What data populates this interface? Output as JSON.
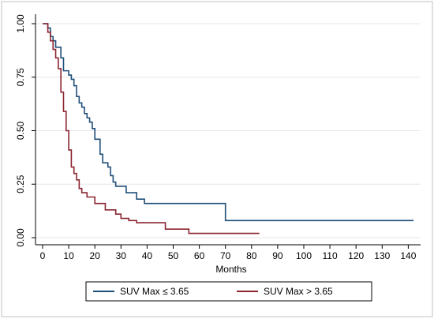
{
  "chart_data": {
    "type": "line",
    "step": true,
    "title": "",
    "xlabel": "Months",
    "ylabel": "",
    "xlim": [
      0,
      142
    ],
    "ylim": [
      0,
      1
    ],
    "x_ticks": [
      0,
      10,
      20,
      30,
      40,
      50,
      60,
      70,
      80,
      90,
      100,
      110,
      120,
      130,
      140
    ],
    "y_ticks": [
      "0.00",
      "0.25",
      "0.50",
      "0.75",
      "1.00"
    ],
    "grid": "horizontal",
    "legend_position": "bottom",
    "series": [
      {
        "name": "SUV Max ≤ 3.65",
        "color": "#1f4e79",
        "points": [
          [
            0,
            1.0
          ],
          [
            2,
            0.98
          ],
          [
            3,
            0.94
          ],
          [
            4,
            0.92
          ],
          [
            5,
            0.89
          ],
          [
            7,
            0.84
          ],
          [
            8,
            0.78
          ],
          [
            10,
            0.76
          ],
          [
            11,
            0.74
          ],
          [
            12,
            0.71
          ],
          [
            13,
            0.66
          ],
          [
            14,
            0.63
          ],
          [
            15,
            0.61
          ],
          [
            16,
            0.58
          ],
          [
            17,
            0.56
          ],
          [
            18,
            0.54
          ],
          [
            19,
            0.51
          ],
          [
            20,
            0.46
          ],
          [
            22,
            0.39
          ],
          [
            23,
            0.35
          ],
          [
            25,
            0.33
          ],
          [
            26,
            0.29
          ],
          [
            27,
            0.26
          ],
          [
            28,
            0.24
          ],
          [
            32,
            0.21
          ],
          [
            36,
            0.18
          ],
          [
            39,
            0.16
          ],
          [
            70,
            0.08
          ],
          [
            142,
            0.08
          ]
        ]
      },
      {
        "name": "SUV Max > 3.65",
        "color": "#8b2530",
        "points": [
          [
            0,
            1.0
          ],
          [
            2,
            0.96
          ],
          [
            3,
            0.92
          ],
          [
            4,
            0.88
          ],
          [
            5,
            0.84
          ],
          [
            6,
            0.79
          ],
          [
            7,
            0.68
          ],
          [
            8,
            0.59
          ],
          [
            9,
            0.5
          ],
          [
            10,
            0.41
          ],
          [
            11,
            0.33
          ],
          [
            12,
            0.3
          ],
          [
            13,
            0.27
          ],
          [
            14,
            0.23
          ],
          [
            15,
            0.21
          ],
          [
            17,
            0.19
          ],
          [
            20,
            0.16
          ],
          [
            24,
            0.13
          ],
          [
            28,
            0.11
          ],
          [
            30,
            0.09
          ],
          [
            33,
            0.08
          ],
          [
            36,
            0.07
          ],
          [
            47,
            0.04
          ],
          [
            56,
            0.02
          ],
          [
            83,
            0.02
          ]
        ]
      }
    ]
  }
}
